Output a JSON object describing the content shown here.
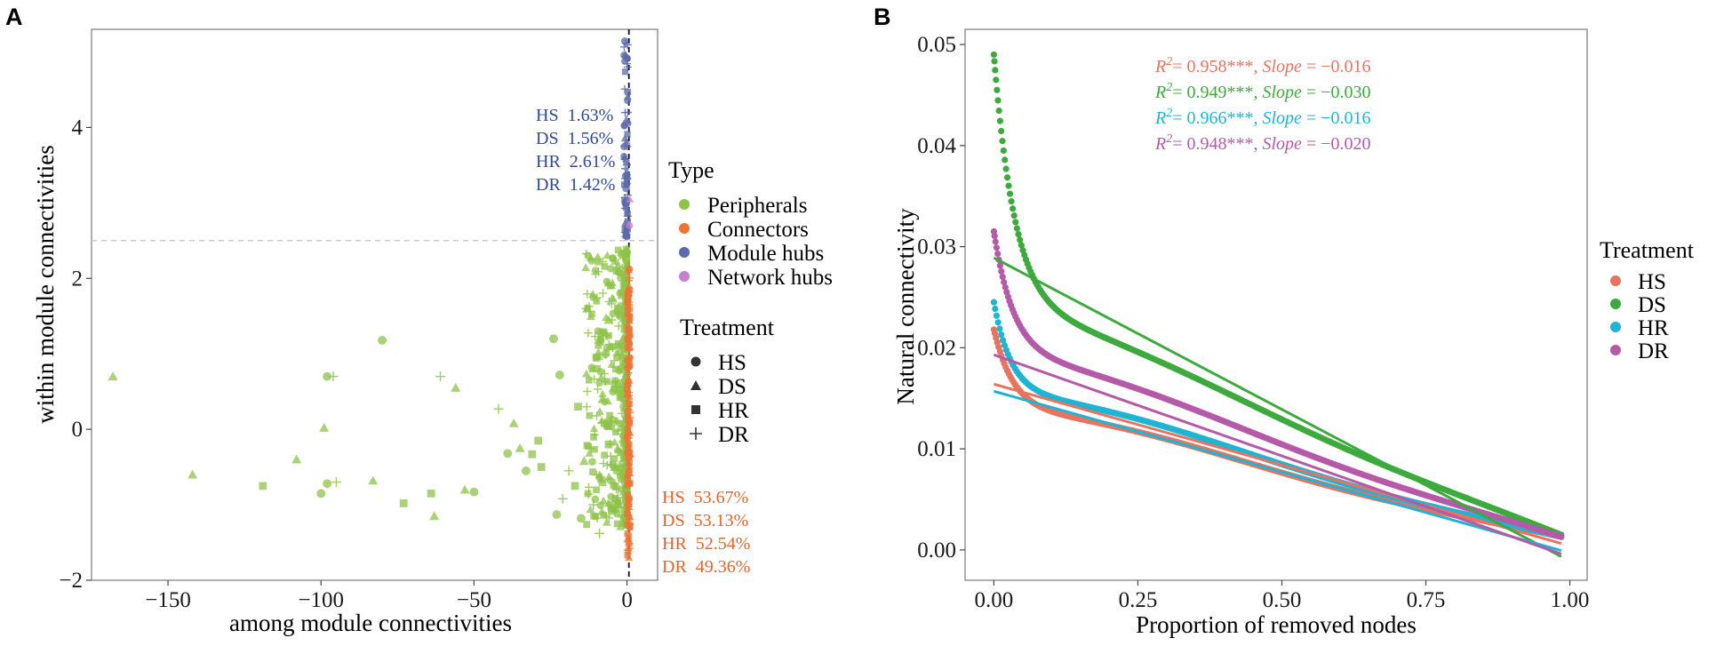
{
  "panels": {
    "A": "A",
    "B": "B"
  },
  "chart_data": [
    {
      "type": "scatter",
      "panel": "A",
      "xlabel": "among module connectivities",
      "ylabel": "within module connectivities",
      "xlim": [
        -175,
        10
      ],
      "ylim": [
        -2,
        5.3
      ],
      "xticks": [
        "−150",
        "−100",
        "−50",
        "0"
      ],
      "xtick_values": [
        -150,
        -100,
        -50,
        0
      ],
      "yticks": [
        "−2",
        "0",
        "2",
        "4"
      ],
      "ytick_values": [
        -2,
        0,
        2,
        4
      ],
      "thresholds": {
        "x": 0.62,
        "y": 2.5
      },
      "type_legend": {
        "title": "Type",
        "items": [
          {
            "label": "Peripherals",
            "color": "#8dc34a"
          },
          {
            "label": "Connectors",
            "color": "#ee7436"
          },
          {
            "label": "Module hubs",
            "color": "#5b6aaa"
          },
          {
            "label": "Network hubs",
            "color": "#c77fd0"
          }
        ]
      },
      "treatment_legend": {
        "title": "Treatment",
        "items": [
          {
            "label": "HS",
            "shape": "circle"
          },
          {
            "label": "DS",
            "shape": "triangle"
          },
          {
            "label": "HR",
            "shape": "square"
          },
          {
            "label": "DR",
            "shape": "plus"
          }
        ]
      },
      "module_hub_pcts": [
        {
          "treatment": "HS",
          "value": "1.63%"
        },
        {
          "treatment": "DS",
          "value": "1.56%"
        },
        {
          "treatment": "HR",
          "value": "2.61%"
        },
        {
          "treatment": "DR",
          "value": "1.42%"
        }
      ],
      "connector_pcts": [
        {
          "treatment": "HS",
          "value": "53.67%"
        },
        {
          "treatment": "DS",
          "value": "53.13%"
        },
        {
          "treatment": "HR",
          "value": "52.54%"
        },
        {
          "treatment": "DR",
          "value": "49.36%"
        }
      ],
      "label_colors": {
        "hubs": "#2e4a9a",
        "connectors": "#e8632a"
      },
      "points": [
        {
          "x": -168,
          "y": 0.7,
          "shape": "triangle"
        },
        {
          "x": -142,
          "y": -0.6,
          "shape": "triangle"
        },
        {
          "x": -119,
          "y": -0.75,
          "shape": "square"
        },
        {
          "x": -108,
          "y": -0.4,
          "shape": "triangle"
        },
        {
          "x": -100,
          "y": -0.85,
          "shape": "circle"
        },
        {
          "x": -99,
          "y": 0.02,
          "shape": "triangle"
        },
        {
          "x": -98,
          "y": 0.7,
          "shape": "circle"
        },
        {
          "x": -96,
          "y": 0.7,
          "shape": "plus"
        },
        {
          "x": -95,
          "y": -0.7,
          "shape": "plus"
        },
        {
          "x": -98,
          "y": -0.72,
          "shape": "circle"
        },
        {
          "x": -80,
          "y": 1.18,
          "shape": "circle"
        },
        {
          "x": -83,
          "y": -0.68,
          "shape": "triangle"
        },
        {
          "x": -73,
          "y": -0.98,
          "shape": "square"
        },
        {
          "x": -64,
          "y": -0.85,
          "shape": "square"
        },
        {
          "x": -63,
          "y": -1.15,
          "shape": "triangle"
        },
        {
          "x": -61,
          "y": 0.7,
          "shape": "plus"
        },
        {
          "x": -56,
          "y": 0.55,
          "shape": "triangle"
        },
        {
          "x": -53,
          "y": -0.8,
          "shape": "triangle"
        },
        {
          "x": -50,
          "y": -0.83,
          "shape": "circle"
        },
        {
          "x": -42,
          "y": 0.27,
          "shape": "plus"
        },
        {
          "x": -39,
          "y": -0.32,
          "shape": "circle"
        },
        {
          "x": -37,
          "y": 0.08,
          "shape": "triangle"
        },
        {
          "x": -35,
          "y": -0.25,
          "shape": "triangle"
        },
        {
          "x": -33,
          "y": -0.55,
          "shape": "circle"
        },
        {
          "x": -31,
          "y": -0.33,
          "shape": "square"
        },
        {
          "x": -28,
          "y": -0.5,
          "shape": "square"
        },
        {
          "x": -29,
          "y": -0.15,
          "shape": "square"
        },
        {
          "x": -24,
          "y": 1.2,
          "shape": "circle"
        },
        {
          "x": -23,
          "y": -1.13,
          "shape": "circle"
        },
        {
          "x": -22,
          "y": 0.72,
          "shape": "circle"
        },
        {
          "x": -21,
          "y": -0.92,
          "shape": "plus"
        },
        {
          "x": -19,
          "y": -0.55,
          "shape": "plus"
        },
        {
          "x": -17,
          "y": -0.75,
          "shape": "square"
        },
        {
          "x": -16,
          "y": 0.3,
          "shape": "square"
        },
        {
          "x": -15,
          "y": -1.18,
          "shape": "circle"
        },
        {
          "x": -14,
          "y": -0.42,
          "shape": "triangle"
        },
        {
          "x": -13,
          "y": 1.6,
          "shape": "triangle"
        },
        {
          "x": -11,
          "y": -1.0,
          "shape": "plus"
        },
        {
          "x": -10,
          "y": 0.95,
          "shape": "square"
        },
        {
          "x": -9,
          "y": -1.38,
          "shape": "plus"
        },
        {
          "x": -8,
          "y": 0.4,
          "shape": "triangle"
        },
        {
          "x": -8,
          "y": -0.7,
          "shape": "square"
        },
        {
          "x": -7,
          "y": 1.0,
          "shape": "circle"
        },
        {
          "x": -6,
          "y": -0.2,
          "shape": "square"
        },
        {
          "x": -6,
          "y": 1.45,
          "shape": "triangle"
        },
        {
          "x": -5,
          "y": -1.05,
          "shape": "circle"
        },
        {
          "x": -5,
          "y": 0.1,
          "shape": "plus"
        },
        {
          "x": -4,
          "y": 0.6,
          "shape": "square"
        },
        {
          "x": -4,
          "y": -0.5,
          "shape": "triangle"
        },
        {
          "x": -3,
          "y": 1.6,
          "shape": "square"
        },
        {
          "x": -3,
          "y": -0.9,
          "shape": "plus"
        },
        {
          "x": -2,
          "y": 0.8,
          "shape": "circle"
        },
        {
          "x": -2,
          "y": -0.3,
          "shape": "triangle"
        },
        {
          "x": -1,
          "y": 1.9,
          "shape": "square"
        },
        {
          "x": -1,
          "y": -1.2,
          "shape": "square"
        },
        {
          "x": -1,
          "y": 0.3,
          "shape": "circle"
        }
      ]
    },
    {
      "type": "scatter",
      "panel": "B",
      "xlabel": "Proportion of removed nodes",
      "ylabel": "Natural connectivity",
      "xlim": [
        -0.05,
        1.03
      ],
      "ylim": [
        -0.003,
        0.0515
      ],
      "xticks": [
        "0.00",
        "0.25",
        "0.50",
        "0.75",
        "1.00"
      ],
      "xtick_values": [
        0,
        0.25,
        0.5,
        0.75,
        1
      ],
      "yticks": [
        "0.00",
        "0.01",
        "0.02",
        "0.03",
        "0.04",
        "0.05"
      ],
      "ytick_values": [
        0,
        0.01,
        0.02,
        0.03,
        0.04,
        0.05
      ],
      "legend_title": "Treatment",
      "series": [
        {
          "name": "HS",
          "color": "#e8735f",
          "r2": "0.958***",
          "slope": "−0.016",
          "fit": [
            0.0164,
            -0.016
          ],
          "curve": {
            "y0": 0.0218,
            "amp": 0.0078,
            "k": 30,
            "lin": -0.0135,
            "end": 0.0013,
            "pow": 1.15
          }
        },
        {
          "name": "DS",
          "color": "#3daa3d",
          "r2": "0.949***",
          "slope": "−0.030",
          "fit": [
            0.0289,
            -0.03
          ],
          "curve": {
            "y0": 0.049,
            "amp": 0.0245,
            "k": 28,
            "lin": -0.0245,
            "end": 0.0015,
            "pow": 1.25
          }
        },
        {
          "name": "HR",
          "color": "#1fb4d4",
          "r2": "0.966***",
          "slope": "−0.016",
          "fit": [
            0.0157,
            -0.016
          ],
          "curve": {
            "y0": 0.0245,
            "amp": 0.0088,
            "k": 34,
            "lin": -0.013,
            "end": 0.0013,
            "pow": 1.1
          }
        },
        {
          "name": "DR",
          "color": "#b45aa8",
          "r2": "0.948***",
          "slope": "−0.020",
          "fit": [
            0.0193,
            -0.02
          ],
          "curve": {
            "y0": 0.0315,
            "amp": 0.0118,
            "k": 30,
            "lin": -0.0172,
            "end": 0.0013,
            "pow": 1.2
          }
        }
      ],
      "stat_text": {
        "r2_label": "R",
        "r2_sup": "2",
        "slope_label": "Slope"
      }
    }
  ]
}
